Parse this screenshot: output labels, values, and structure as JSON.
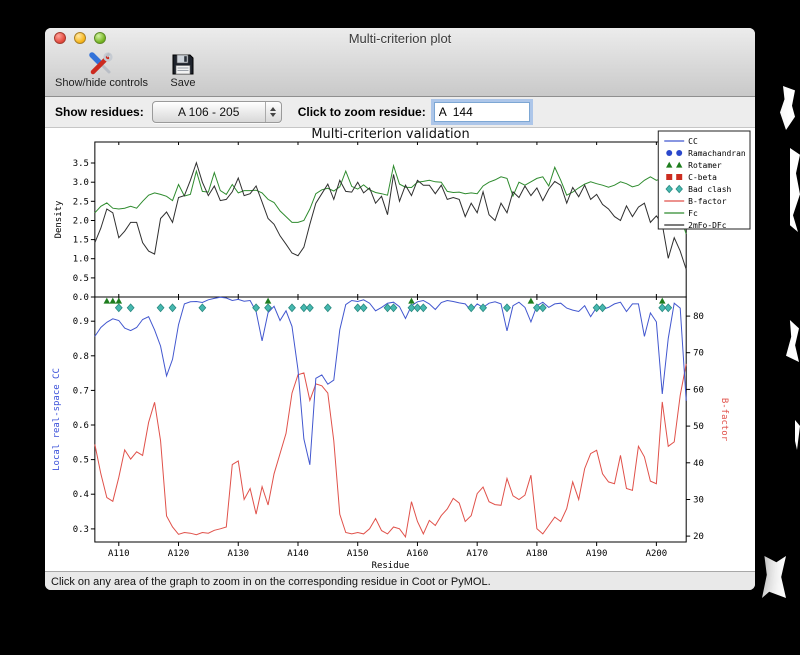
{
  "window": {
    "title": "Multi-criterion plot"
  },
  "toolbar": {
    "buttons": [
      {
        "label": "Show/hide controls",
        "icon": "tools-icon"
      },
      {
        "label": "Save",
        "icon": "save-icon"
      }
    ]
  },
  "controls": {
    "show_residues_label": "Show residues:",
    "show_residues_value": "A 106 - 205",
    "zoom_residue_label": "Click to zoom residue:",
    "zoom_residue_value": "A  144"
  },
  "status_bar": {
    "text": "Click on any area of the graph to zoom in on the corresponding residue in Coot or PyMOL."
  },
  "chart_data": {
    "type": "line",
    "title": "Multi-criterion validation",
    "x_label": "Residue",
    "x_range": [
      106,
      205
    ],
    "x_tick_values": [
      110,
      120,
      130,
      140,
      150,
      160,
      170,
      180,
      190,
      200
    ],
    "x_tick_labels": [
      "A110",
      "A120",
      "A130",
      "A140",
      "A150",
      "A160",
      "A170",
      "A180",
      "A190",
      "A200"
    ],
    "colors": {
      "cc_line": "#4257cf",
      "bfactor_line": "#e0514a",
      "fc_line": "#2e8b2e",
      "map_line": "#2f2f2f",
      "rotamer_marker": "#1e7d1e",
      "clash_marker_fill": "#46b8b0",
      "clash_marker_edge": "#2a8a80",
      "ramachandran_marker": "#2b48cc",
      "cbeta_marker": "#cc2d20",
      "cc_axis_label": "#3a50d9",
      "bfactor_axis_label": "#e0514a"
    },
    "top_plot": {
      "y_label": "Density",
      "y_range": [
        0,
        4.05
      ],
      "y_tick_values": [
        0,
        0.5,
        1.0,
        1.5,
        2.0,
        2.5,
        3.0,
        3.5
      ],
      "y_tick_labels": [
        "0.0",
        "0.5",
        "1.0",
        "1.5",
        "2.0",
        "2.5",
        "3.0",
        "3.5"
      ],
      "series": [
        {
          "name": "Fc",
          "color_key": "fc_line",
          "values": [
            2.2,
            2.37,
            2.46,
            2.32,
            2.3,
            2.32,
            2.37,
            2.32,
            2.5,
            2.66,
            2.72,
            2.68,
            2.63,
            2.52,
            2.94,
            2.64,
            2.68,
            3.29,
            2.76,
            2.74,
            3.25,
            2.78,
            2.68,
            2.94,
            2.72,
            2.78,
            2.78,
            2.79,
            2.72,
            2.55,
            2.47,
            2.25,
            2.1,
            1.95,
            1.95,
            2.0,
            2.3,
            2.7,
            2.8,
            2.84,
            2.77,
            2.88,
            3.29,
            2.89,
            2.82,
            2.93,
            2.8,
            2.73,
            2.7,
            2.66,
            3.43,
            2.95,
            2.87,
            2.86,
            3.0,
            3.02,
            3.05,
            3.01,
            3.0,
            2.76,
            2.73,
            2.74,
            2.7,
            2.72,
            2.7,
            2.9,
            3.0,
            3.06,
            3.14,
            3.1,
            2.64,
            3.0,
            2.92,
            3.01,
            3.1,
            3.14,
            2.9,
            3.39,
            3.05,
            2.66,
            2.74,
            2.85,
            2.95,
            3.01,
            2.96,
            2.92,
            2.87,
            2.92,
            3.01,
            2.96,
            2.88,
            2.92,
            3.05,
            3.14,
            3.05,
            3.1,
            2.8,
            2.4,
            2.1,
            1.65
          ]
        },
        {
          "name": "2mFo-DFc",
          "color_key": "map_line",
          "values": [
            1.42,
            1.8,
            2.3,
            2.2,
            1.55,
            1.72,
            1.95,
            1.95,
            1.42,
            1.2,
            1.12,
            2.05,
            2.22,
            1.95,
            2.6,
            2.65,
            3.05,
            3.51,
            3.0,
            2.65,
            2.9,
            2.52,
            2.55,
            2.75,
            3.11,
            2.65,
            2.7,
            2.9,
            2.48,
            2.05,
            1.9,
            1.6,
            1.38,
            1.15,
            1.08,
            1.3,
            1.9,
            2.45,
            2.7,
            2.95,
            2.55,
            3.05,
            2.76,
            2.74,
            3.0,
            2.72,
            2.85,
            2.45,
            2.63,
            2.15,
            3.2,
            2.5,
            2.92,
            2.65,
            3.05,
            2.92,
            2.92,
            2.7,
            2.92,
            2.55,
            2.6,
            2.55,
            2.1,
            2.45,
            2.2,
            2.75,
            2.15,
            2.0,
            2.45,
            2.2,
            2.75,
            2.6,
            2.9,
            2.65,
            2.85,
            2.52,
            2.82,
            3.02,
            2.92,
            2.45,
            2.86,
            2.62,
            2.92,
            2.55,
            2.68,
            2.42,
            2.3,
            2.1,
            2.0,
            2.38,
            2.1,
            2.35,
            2.45,
            1.95,
            2.12,
            1.9,
            1.01,
            1.55,
            1.2,
            0.72
          ]
        }
      ]
    },
    "bottom_plot": {
      "y_left_label": "Local real-space CC",
      "y_left_range": [
        0.262,
        0.97
      ],
      "y_left_tick_values": [
        0.3,
        0.4,
        0.5,
        0.6,
        0.7,
        0.8,
        0.9
      ],
      "y_left_tick_labels": [
        "0.3",
        "0.4",
        "0.5",
        "0.6",
        "0.7",
        "0.8",
        "0.9"
      ],
      "y_right_label": "B-factor",
      "y_right_range": [
        18.4,
        85.2
      ],
      "y_right_tick_values": [
        20,
        30,
        40,
        50,
        60,
        70,
        80
      ],
      "y_right_tick_labels": [
        "20",
        "30",
        "40",
        "50",
        "60",
        "70",
        "80"
      ],
      "series": [
        {
          "name": "B-factor",
          "axis": "right",
          "color_key": "bfactor_line",
          "values": [
            45.0,
            37.0,
            30.5,
            29.5,
            36.0,
            43.5,
            41.0,
            43.0,
            42.0,
            51.0,
            56.5,
            46.0,
            25.5,
            22.5,
            20.5,
            21.0,
            20.8,
            20.4,
            21.0,
            20.8,
            21.6,
            22.0,
            22.5,
            39.5,
            40.5,
            30.0,
            33.0,
            26.0,
            33.5,
            28.5,
            37.0,
            42.5,
            48.0,
            59.0,
            64.0,
            64.5,
            57.0,
            61.5,
            61.0,
            59.0,
            46.0,
            26.0,
            21.0,
            20.6,
            21.0,
            20.6,
            22.0,
            24.8,
            21.5,
            20.6,
            22.5,
            22.0,
            19.8,
            29.4,
            24.0,
            20.6,
            24.3,
            22.9,
            25.6,
            27.4,
            30.3,
            29.0,
            24.0,
            25.6,
            31.6,
            33.4,
            29.4,
            28.6,
            28.4,
            35.7,
            31.0,
            30.0,
            31.2,
            36.6,
            22.0,
            20.6,
            22.9,
            25.2,
            24.0,
            27.5,
            34.8,
            30.0,
            38.4,
            42.5,
            43.4,
            37.0,
            34.8,
            34.3,
            42.0,
            33.0,
            32.5,
            44.5,
            41.6,
            35.0,
            34.3,
            56.6,
            44.5,
            45.7,
            58.4,
            67.0
          ]
        },
        {
          "name": "CC",
          "axis": "left",
          "color_key": "cc_line",
          "values": [
            0.856,
            0.882,
            0.897,
            0.907,
            0.902,
            0.88,
            0.873,
            0.882,
            0.905,
            0.913,
            0.875,
            0.828,
            0.742,
            0.79,
            0.89,
            0.95,
            0.956,
            0.957,
            0.954,
            0.962,
            0.966,
            0.969,
            0.967,
            0.96,
            0.963,
            0.958,
            0.96,
            0.928,
            0.843,
            0.925,
            0.943,
            0.902,
            0.93,
            0.885,
            0.76,
            0.56,
            0.485,
            0.735,
            0.745,
            0.718,
            0.73,
            0.875,
            0.948,
            0.96,
            0.957,
            0.962,
            0.952,
            0.93,
            0.94,
            0.952,
            0.955,
            0.942,
            0.908,
            0.945,
            0.956,
            0.96,
            0.95,
            0.934,
            0.954,
            0.96,
            0.957,
            0.953,
            0.95,
            0.93,
            0.95,
            0.94,
            0.952,
            0.956,
            0.95,
            0.872,
            0.945,
            0.955,
            0.94,
            0.898,
            0.945,
            0.955,
            0.94,
            0.95,
            0.952,
            0.938,
            0.932,
            0.928,
            0.945,
            0.913,
            0.94,
            0.934,
            0.94,
            0.95,
            0.955,
            0.928,
            0.95,
            0.95,
            0.856,
            0.924,
            0.898,
            0.69,
            0.85,
            0.952,
            0.938,
            0.67
          ]
        }
      ],
      "markers": {
        "rotamer_residues": [
          108,
          109,
          110,
          135,
          159,
          179,
          201
        ],
        "bad_clash_residues": [
          110,
          112,
          117,
          119,
          124,
          133,
          135,
          139,
          141,
          142,
          145,
          150,
          151,
          155,
          156,
          159,
          160,
          161,
          169,
          171,
          175,
          180,
          181,
          190,
          191,
          201,
          202
        ]
      }
    },
    "legend": {
      "position": "upper right",
      "entries": [
        {
          "label": "CC",
          "symbol": "line",
          "color_key": "cc_line"
        },
        {
          "label": "Ramachandran",
          "symbol": "circle",
          "color_key": "ramachandran_marker"
        },
        {
          "label": "Rotamer",
          "symbol": "triangle",
          "color_key": "rotamer_marker"
        },
        {
          "label": "C-beta",
          "symbol": "square",
          "color_key": "cbeta_marker"
        },
        {
          "label": "Bad clash",
          "symbol": "diamond",
          "color_key": "clash_marker_fill"
        },
        {
          "label": "B-factor",
          "symbol": "line",
          "color_key": "bfactor_line"
        },
        {
          "label": "Fc",
          "symbol": "line",
          "color_key": "fc_line"
        },
        {
          "label": "2mFo-DFc",
          "symbol": "line",
          "color_key": "map_line"
        }
      ]
    }
  }
}
